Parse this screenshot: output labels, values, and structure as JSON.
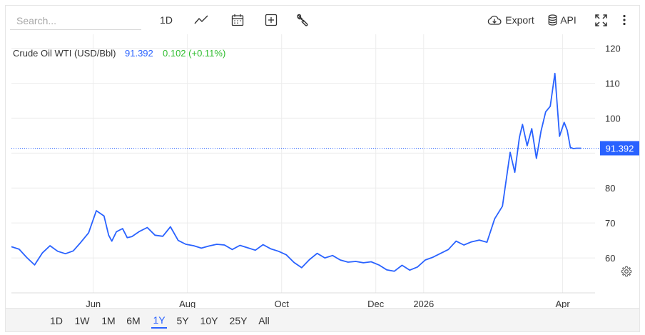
{
  "toolbar": {
    "search_placeholder": "Search...",
    "interval_label": "1D",
    "export_label": "Export",
    "api_label": "API"
  },
  "legend": {
    "name": "Crude Oil WTI (USD/Bbl)",
    "last": "91.392",
    "change": "0.102 (+0.11%)"
  },
  "colors": {
    "line": "#2962ff",
    "change_positive": "#2ebd2e",
    "grid": "#ececec",
    "price_tag_bg": "#2962ff",
    "active_range": "#2962ff"
  },
  "ranges": [
    "1D",
    "1W",
    "1M",
    "6M",
    "1Y",
    "5Y",
    "10Y",
    "25Y",
    "All"
  ],
  "active_range": "1Y",
  "chart_data": {
    "type": "line",
    "series": [
      {
        "name": "Crude Oil WTI (USD/Bbl)",
        "x": [
          "2025-04-09",
          "2025-04-14",
          "2025-04-19",
          "2025-04-24",
          "2025-04-29",
          "2025-05-04",
          "2025-05-09",
          "2025-05-14",
          "2025-05-19",
          "2025-05-24",
          "2025-05-29",
          "2025-06-03",
          "2025-06-08",
          "2025-06-11",
          "2025-06-13",
          "2025-06-16",
          "2025-06-20",
          "2025-06-23",
          "2025-06-26",
          "2025-07-01",
          "2025-07-06",
          "2025-07-11",
          "2025-07-16",
          "2025-07-21",
          "2025-07-26",
          "2025-07-31",
          "2025-08-05",
          "2025-08-10",
          "2025-08-15",
          "2025-08-20",
          "2025-08-25",
          "2025-08-30",
          "2025-09-04",
          "2025-09-09",
          "2025-09-14",
          "2025-09-19",
          "2025-09-24",
          "2025-09-29",
          "2025-10-04",
          "2025-10-09",
          "2025-10-14",
          "2025-10-19",
          "2025-10-24",
          "2025-10-29",
          "2025-11-03",
          "2025-11-08",
          "2025-11-13",
          "2025-11-18",
          "2025-11-23",
          "2025-11-28",
          "2025-12-03",
          "2025-12-08",
          "2025-12-13",
          "2025-12-18",
          "2025-12-23",
          "2025-12-28",
          "2026-01-02",
          "2026-01-07",
          "2026-01-12",
          "2026-01-17",
          "2026-01-22",
          "2026-01-27",
          "2026-02-01",
          "2026-02-06",
          "2026-02-11",
          "2026-02-16",
          "2026-02-21",
          "2026-02-26",
          "2026-03-01",
          "2026-03-04",
          "2026-03-06",
          "2026-03-09",
          "2026-03-12",
          "2026-03-15",
          "2026-03-18",
          "2026-03-21",
          "2026-03-24",
          "2026-03-27",
          "2026-03-30",
          "2026-04-02",
          "2026-04-04",
          "2026-04-06",
          "2026-04-08",
          "2026-04-10",
          "2026-04-13"
        ],
        "values": [
          63.2,
          62.5,
          60.1,
          58.0,
          61.4,
          63.5,
          61.9,
          61.2,
          62.0,
          64.5,
          67.2,
          73.5,
          72.0,
          66.5,
          64.8,
          67.5,
          68.4,
          65.8,
          66.1,
          67.6,
          68.7,
          66.5,
          66.2,
          68.9,
          65.0,
          63.9,
          63.5,
          62.8,
          63.4,
          63.9,
          63.7,
          62.4,
          63.6,
          62.9,
          62.2,
          63.8,
          62.6,
          61.9,
          60.9,
          58.7,
          57.2,
          59.5,
          61.3,
          60.0,
          60.7,
          59.4,
          58.8,
          59.0,
          58.6,
          58.9,
          58.0,
          56.6,
          56.2,
          57.9,
          56.5,
          57.4,
          59.4,
          60.2,
          61.3,
          62.4,
          64.8,
          63.7,
          64.6,
          65.1,
          64.5,
          71.2,
          74.8,
          90.2,
          84.5,
          94.5,
          98.2,
          92.1,
          97.0,
          88.5,
          96.3,
          101.8,
          103.4,
          112.8,
          94.8,
          98.8,
          96.5,
          91.6,
          91.29,
          91.392,
          91.392
        ],
        "last_value": 91.392
      }
    ],
    "x_tick_labels": [
      "Jun",
      "Aug",
      "Oct",
      "Dec",
      "2026",
      "Apr"
    ],
    "x_tick_dates": [
      "2025-06-01",
      "2025-08-01",
      "2025-10-01",
      "2025-12-01",
      "2026-01-01",
      "2026-04-01"
    ],
    "y_ticks": [
      60,
      70,
      80,
      90,
      100,
      110,
      120
    ],
    "y_tick_labels": [
      "60",
      "70",
      "80",
      "",
      "100",
      "110",
      "120"
    ],
    "ylim": [
      50,
      124
    ],
    "xlim": [
      "2025-04-09",
      "2026-04-22"
    ],
    "grid": true,
    "legend_position": "top-left",
    "title": "",
    "xlabel": "",
    "ylabel": ""
  }
}
